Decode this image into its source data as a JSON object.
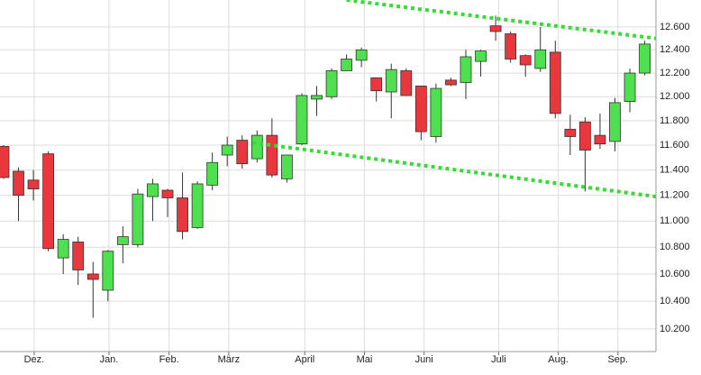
{
  "chart_data": {
    "type": "candlestick",
    "x": [
      0,
      1,
      2,
      3,
      4,
      5,
      6,
      7,
      8,
      9,
      10,
      11,
      12,
      13,
      14,
      15,
      16,
      17,
      18,
      19,
      20,
      21,
      22,
      23,
      24,
      25,
      26,
      27,
      28,
      29,
      30,
      31,
      32,
      33,
      34,
      35,
      36,
      37,
      38,
      39,
      40,
      41,
      42,
      43
    ],
    "open": [
      11.59,
      11.39,
      11.32,
      11.53,
      10.72,
      10.84,
      10.6,
      10.48,
      10.82,
      10.82,
      11.19,
      11.24,
      11.18,
      10.95,
      11.28,
      11.52,
      11.64,
      11.49,
      11.68,
      11.33,
      11.61,
      11.98,
      12.0,
      12.22,
      12.31,
      12.16,
      12.04,
      12.22,
      12.09,
      11.67,
      12.14,
      12.12,
      12.3,
      12.61,
      12.54,
      12.35,
      12.24,
      12.38,
      11.73,
      11.79,
      11.68,
      11.63,
      11.96,
      12.2
    ],
    "high": [
      11.6,
      11.42,
      11.4,
      11.55,
      10.9,
      10.88,
      10.69,
      10.78,
      10.96,
      11.25,
      11.33,
      11.25,
      11.38,
      11.31,
      11.54,
      11.67,
      11.68,
      11.72,
      11.82,
      11.52,
      12.03,
      12.09,
      12.24,
      12.36,
      12.42,
      12.16,
      12.28,
      12.24,
      12.09,
      12.11,
      12.16,
      12.4,
      12.4,
      12.7,
      12.56,
      12.36,
      12.6,
      12.48,
      11.85,
      11.83,
      11.86,
      11.99,
      12.24,
      12.48
    ],
    "low": [
      11.33,
      11.0,
      11.16,
      10.77,
      10.6,
      10.52,
      10.28,
      10.4,
      10.68,
      10.8,
      11.0,
      11.03,
      10.86,
      10.94,
      11.24,
      11.43,
      11.41,
      11.46,
      11.34,
      11.3,
      11.6,
      11.84,
      11.98,
      12.22,
      12.25,
      11.96,
      11.82,
      12.01,
      11.64,
      11.62,
      12.09,
      11.98,
      12.17,
      12.48,
      12.29,
      12.17,
      12.21,
      11.82,
      11.52,
      11.23,
      11.57,
      11.55,
      11.87,
      12.18
    ],
    "close": [
      11.34,
      11.2,
      11.25,
      10.79,
      10.86,
      10.63,
      10.56,
      10.77,
      10.88,
      11.21,
      11.29,
      11.18,
      10.92,
      11.29,
      11.46,
      11.6,
      11.45,
      11.68,
      11.36,
      11.52,
      12.01,
      12.01,
      12.22,
      12.32,
      12.4,
      12.05,
      12.23,
      12.01,
      11.71,
      12.07,
      12.1,
      12.34,
      12.39,
      12.56,
      12.32,
      12.27,
      12.4,
      11.86,
      11.67,
      11.56,
      11.61,
      11.95,
      12.2,
      12.45
    ],
    "up_color": "#4ee04e",
    "down_color": "#e8383d",
    "xlim": [
      -0.24,
      43.75
    ],
    "xticks": [
      {
        "value": 2.05,
        "label": "Dez."
      },
      {
        "value": 7.07,
        "label": "Jan."
      },
      {
        "value": 11.1,
        "label": "Feb."
      },
      {
        "value": 15.1,
        "label": "März"
      },
      {
        "value": 20.2,
        "label": "April"
      },
      {
        "value": 24.2,
        "label": "Mai"
      },
      {
        "value": 28.2,
        "label": "Juni"
      },
      {
        "value": 33.2,
        "label": "Juli"
      },
      {
        "value": 37.2,
        "label": "Aug."
      },
      {
        "value": 41.2,
        "label": "Sep."
      }
    ],
    "ylim": [
      10.04,
      12.84
    ],
    "log_scale": true,
    "yticks": [
      {
        "value": 10.2,
        "label": "10.200"
      },
      {
        "value": 10.4,
        "label": "10.400"
      },
      {
        "value": 10.6,
        "label": "10.600"
      },
      {
        "value": 10.8,
        "label": "10.800"
      },
      {
        "value": 11.0,
        "label": "11.000"
      },
      {
        "value": 11.2,
        "label": "11.200"
      },
      {
        "value": 11.4,
        "label": "11.400"
      },
      {
        "value": 11.6,
        "label": "11.600"
      },
      {
        "value": 11.8,
        "label": "11.800"
      },
      {
        "value": 12.0,
        "label": "12.000"
      },
      {
        "value": 12.2,
        "label": "12.200"
      },
      {
        "value": 12.4,
        "label": "12.400"
      },
      {
        "value": 12.6,
        "label": "12.600"
      }
    ],
    "grid": true,
    "trendlines": [
      {
        "x": [
          23.0,
          43.75
        ],
        "y": [
          12.84,
          12.5
        ],
        "color": "#33dd33"
      },
      {
        "x": [
          16.7,
          43.75
        ],
        "y": [
          11.62,
          11.19
        ],
        "color": "#33dd33"
      }
    ]
  }
}
